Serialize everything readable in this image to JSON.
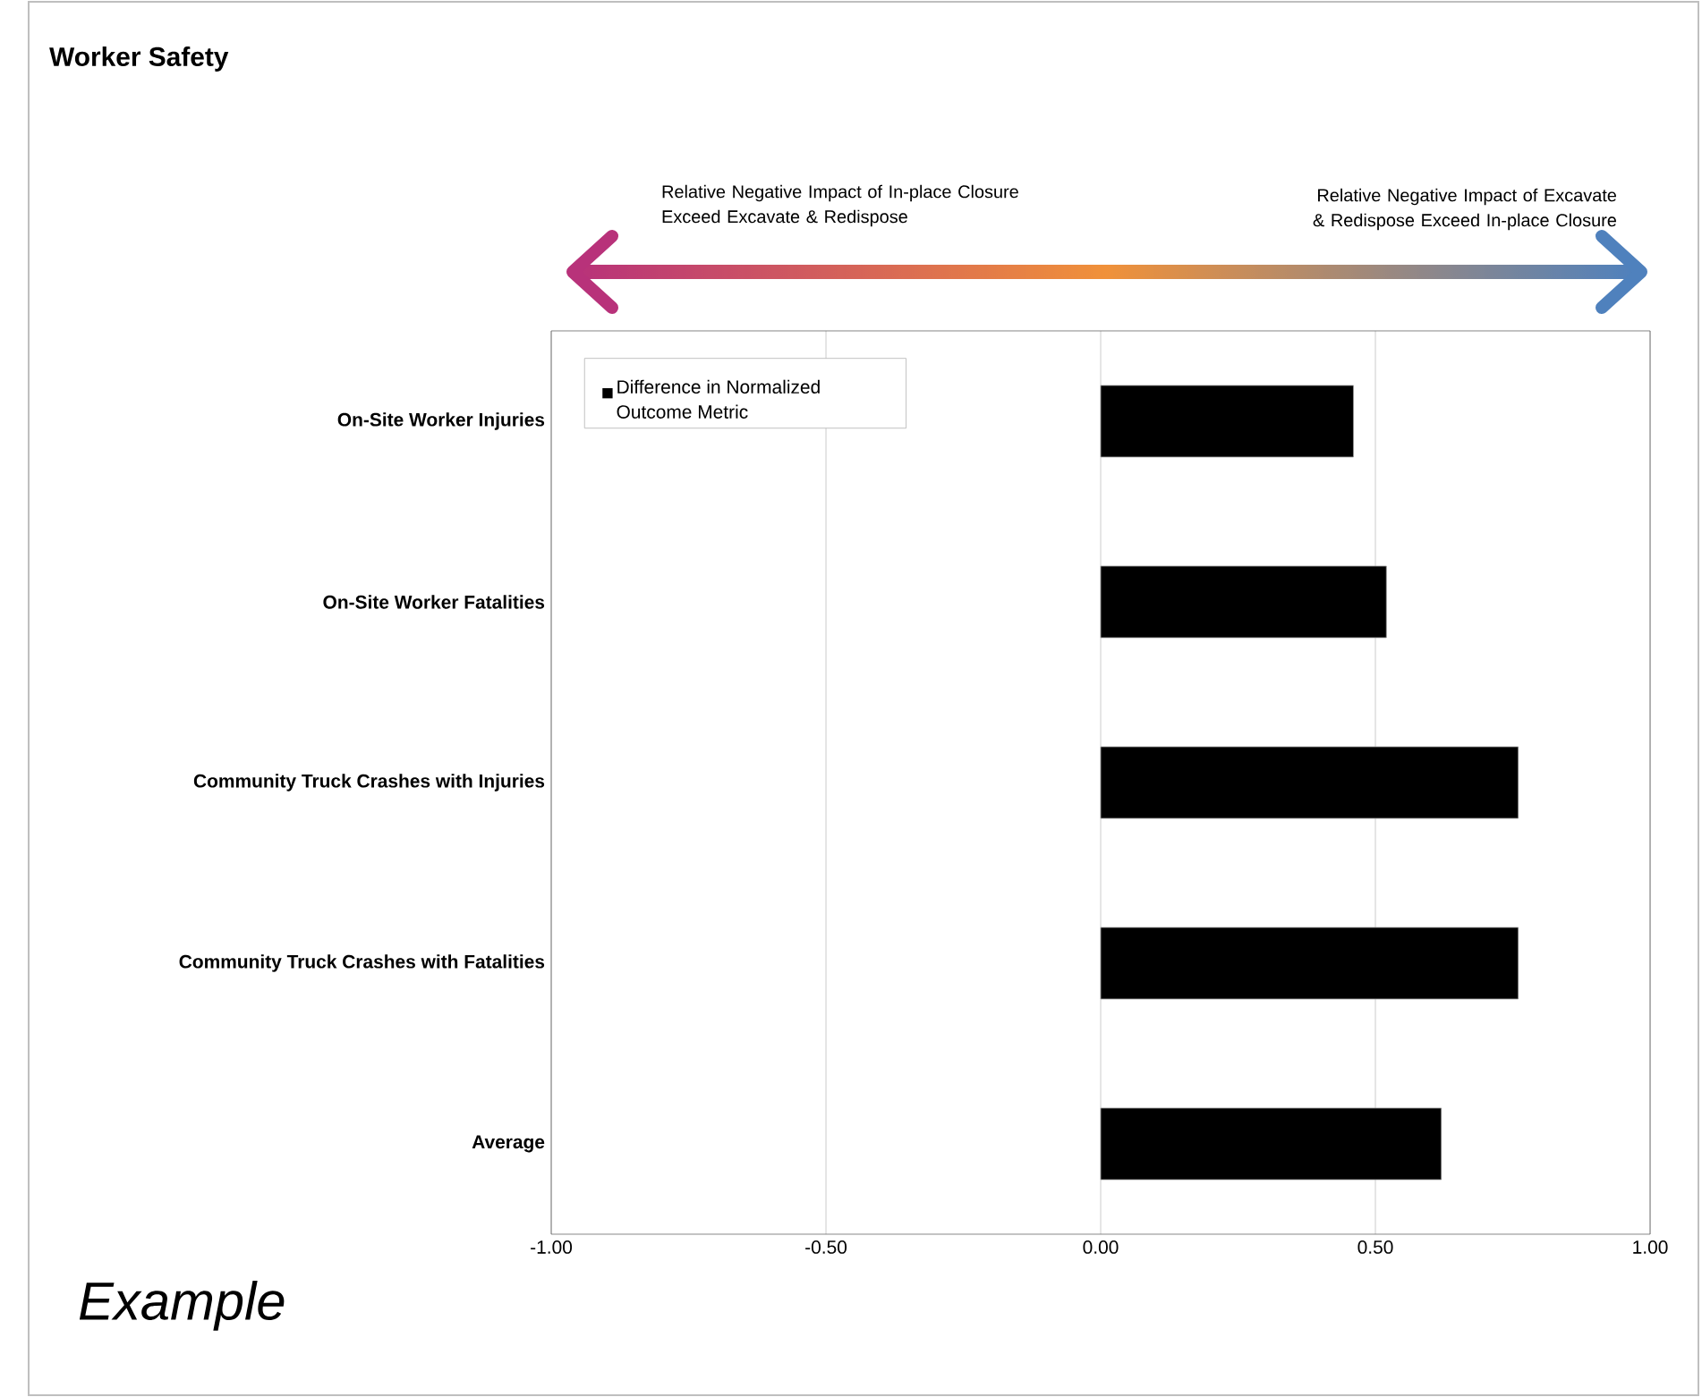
{
  "chart_data": {
    "type": "bar",
    "orientation": "horizontal",
    "title": "Worker Safety",
    "categories": [
      "On-Site Worker Injuries",
      "On-Site Worker Fatalities",
      "Community Truck Crashes with Injuries",
      "Community Truck Crashes with Fatalities",
      "Average"
    ],
    "series": [
      {
        "name": "Difference in Normalized Outcome Metric",
        "color": "#000000",
        "values": [
          0.46,
          0.52,
          0.76,
          0.76,
          0.62
        ]
      }
    ],
    "xlim": [
      -1,
      1
    ],
    "xticks": [
      {
        "value": -1,
        "label": "-1.00"
      },
      {
        "value": -0.5,
        "label": "-0.50"
      },
      {
        "value": 0,
        "label": "0.00"
      },
      {
        "value": 0.5,
        "label": "0.50"
      },
      {
        "value": 1,
        "label": "1.00"
      }
    ],
    "grid": "x",
    "legend": "top left",
    "annotations": [
      "Relative Negative Impact of In-place Closure Exceed Excavate & Redispose",
      "Relative Negative Impact of Excavate & Redispose Exceed In-place Closure",
      "Example"
    ]
  }
}
